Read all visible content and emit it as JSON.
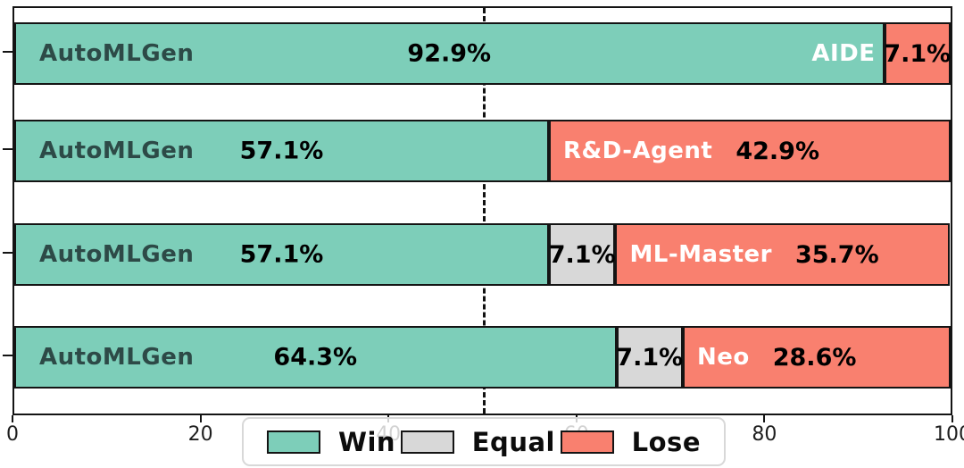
{
  "chart_data": {
    "type": "bar",
    "orientation": "horizontal",
    "stacked": true,
    "title": "",
    "xlabel": "",
    "ylabel": "",
    "xlim": [
      0,
      100
    ],
    "xticks": [
      0,
      20,
      40,
      60,
      80,
      100
    ],
    "reference_line_x": 50,
    "grid": false,
    "bar_label": "AutoMLGen",
    "rows": [
      {
        "opponent": "AIDE",
        "win": 92.9,
        "equal": 0,
        "lose": 7.1,
        "win_text": "92.9%",
        "equal_text": "",
        "lose_text": "7.1%",
        "opponent_label_on": "win"
      },
      {
        "opponent": "R&D-Agent",
        "win": 57.1,
        "equal": 0,
        "lose": 42.9,
        "win_text": "57.1%",
        "equal_text": "",
        "lose_text": "42.9%",
        "opponent_label_on": "lose"
      },
      {
        "opponent": "ML-Master",
        "win": 57.1,
        "equal": 7.1,
        "lose": 35.7,
        "win_text": "57.1%",
        "equal_text": "7.1%",
        "lose_text": "35.7%",
        "opponent_label_on": "lose"
      },
      {
        "opponent": "Neo",
        "win": 64.3,
        "equal": 7.1,
        "lose": 28.6,
        "win_text": "64.3%",
        "equal_text": "7.1%",
        "lose_text": "28.6%",
        "opponent_label_on": "lose"
      }
    ],
    "legend": {
      "position": "bottom-center",
      "entries": [
        {
          "label": "Win",
          "color": "#7dceb9"
        },
        {
          "label": "Equal",
          "color": "#d8d8d8"
        },
        {
          "label": "Lose",
          "color": "#f9806f"
        }
      ]
    },
    "colors": {
      "win": "#7dceb9",
      "equal": "#d8d8d8",
      "lose": "#f9806f",
      "edge": "#141414",
      "bar_label_text": "#2d4a47",
      "pct_text": "#000000",
      "opponent_text": "#ffffff"
    }
  }
}
